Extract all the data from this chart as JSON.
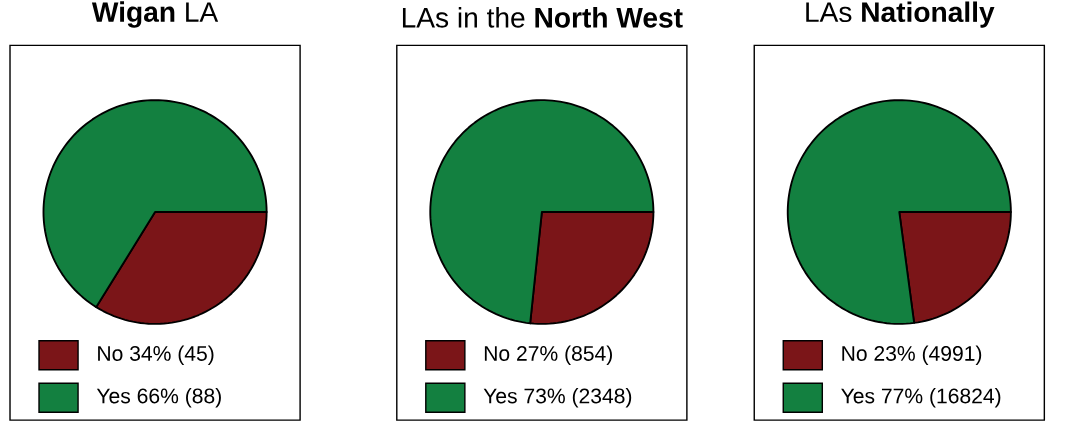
{
  "chart_data": [
    {
      "type": "pie",
      "title": "**Wigan** LA",
      "categories": [
        "No",
        "Yes"
      ],
      "values": [
        45,
        88
      ],
      "value_labels": [
        "34%  (45)",
        "66%  (88)"
      ],
      "colors": [
        "#7b1518",
        "#138040"
      ],
      "legend": "bottom"
    },
    {
      "type": "pie",
      "title": "LAs in the **North West**",
      "categories": [
        "No",
        "Yes"
      ],
      "values": [
        854,
        2348
      ],
      "value_labels": [
        "27%  (854)",
        "73%  (2348)"
      ],
      "colors": [
        "#7b1518",
        "#138040"
      ],
      "legend": "bottom"
    },
    {
      "type": "pie",
      "title": "LAs **Nationally**",
      "categories": [
        "No",
        "Yes"
      ],
      "values": [
        4991,
        16824
      ],
      "value_labels": [
        "23%  (4991)",
        "77%  (16824)"
      ],
      "colors": [
        "#7b1518",
        "#138040"
      ],
      "legend": "bottom"
    }
  ]
}
